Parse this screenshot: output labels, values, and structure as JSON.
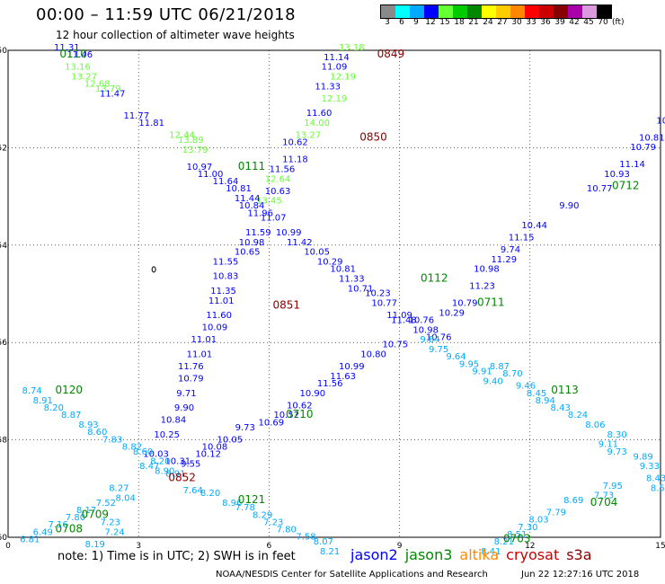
{
  "header": {
    "title": "00:00 – 11:59 UTC 06/21/2018",
    "subtitle": "12 hour collection of altimeter wave heights"
  },
  "legend": {
    "unit": "(ft)",
    "bins": [
      {
        "label": "3",
        "color": "#8a8a8a"
      },
      {
        "label": "6",
        "color": "#00ffff"
      },
      {
        "label": "9",
        "color": "#00aaff"
      },
      {
        "label": "12",
        "color": "#0000ff"
      },
      {
        "label": "15",
        "color": "#66ff33"
      },
      {
        "label": "18",
        "color": "#00cc00"
      },
      {
        "label": "21",
        "color": "#008800"
      },
      {
        "label": "24",
        "color": "#ffff00"
      },
      {
        "label": "27",
        "color": "#ffcc00"
      },
      {
        "label": "30",
        "color": "#ff8800"
      },
      {
        "label": "33",
        "color": "#ff0000"
      },
      {
        "label": "36",
        "color": "#cc0000"
      },
      {
        "label": "39",
        "color": "#880000"
      },
      {
        "label": "42",
        "color": "#aa00aa"
      },
      {
        "label": "45",
        "color": "#dd99dd"
      },
      {
        "label": "70",
        "color": "#000000"
      }
    ]
  },
  "axes": {
    "x_ticks": [
      "0",
      "3",
      "6",
      "9",
      "12",
      "15"
    ],
    "y_ticks": [
      "-50",
      "-52",
      "-54",
      "-56",
      "-58",
      "-60"
    ]
  },
  "colors": {
    "jason2": "#0000ff",
    "jason3": "#008800",
    "altika": "#ff8800",
    "cryosat": "#cc0000",
    "s3a": "#880000",
    "swh_lightblue": "#00aaff",
    "swh_blue": "#0000ff",
    "swh_lightgreen": "#66ff33",
    "time_green": "#008800",
    "time_darkred": "#880000"
  },
  "map": {
    "times": [
      {
        "text": "0110",
        "x": 1.5,
        "y": -50.15,
        "c": "green"
      },
      {
        "text": "0849",
        "x": 8.8,
        "y": -50.15,
        "c": "darkred"
      },
      {
        "text": "0850",
        "x": 8.4,
        "y": -51.85,
        "c": "darkred"
      },
      {
        "text": "0111",
        "x": 5.6,
        "y": -52.45,
        "c": "green"
      },
      {
        "text": "0712",
        "x": 14.2,
        "y": -52.85,
        "c": "green"
      },
      {
        "text": "0112",
        "x": 9.8,
        "y": -54.75,
        "c": "green"
      },
      {
        "text": "0711",
        "x": 11.1,
        "y": -55.25,
        "c": "green"
      },
      {
        "text": "0851",
        "x": 6.4,
        "y": -55.3,
        "c": "darkred"
      },
      {
        "text": "0120",
        "x": 1.4,
        "y": -57.05,
        "c": "green"
      },
      {
        "text": "0113",
        "x": 12.8,
        "y": -57.05,
        "c": "green"
      },
      {
        "text": "0710",
        "x": 6.7,
        "y": -57.55,
        "c": "green"
      },
      {
        "text": "0852",
        "x": 4.0,
        "y": -58.85,
        "c": "darkred"
      },
      {
        "text": "0121",
        "x": 5.6,
        "y": -59.3,
        "c": "green"
      },
      {
        "text": "0704",
        "x": 13.7,
        "y": -59.35,
        "c": "green"
      },
      {
        "text": "0709",
        "x": 2.0,
        "y": -59.6,
        "c": "green"
      },
      {
        "text": "0708",
        "x": 1.4,
        "y": -59.9,
        "c": "green"
      },
      {
        "text": "0703",
        "x": 11.7,
        "y": -60.1,
        "c": "green"
      }
    ],
    "tracks": [
      {
        "c": "lightgreen",
        "pts": [
          [
            "13.16",
            1.6,
            -50.4
          ],
          [
            "13.27",
            1.75,
            -50.6
          ],
          [
            "12.68",
            2.05,
            -50.75
          ],
          [
            "13.79",
            2.3,
            -50.85
          ],
          [
            "12.44",
            4.0,
            -51.8
          ],
          [
            "13.89",
            4.2,
            -51.9
          ],
          [
            "13.79",
            4.3,
            -52.1
          ],
          [
            "13.18",
            7.9,
            -50.0
          ],
          [
            "12.19",
            7.7,
            -50.6
          ],
          [
            "12.19",
            7.5,
            -51.05
          ],
          [
            "14.00",
            7.1,
            -51.55
          ],
          [
            "13.27",
            6.9,
            -51.8
          ],
          [
            "12.64",
            6.2,
            -52.7
          ],
          [
            "13.45",
            6.0,
            -53.15
          ]
        ]
      },
      {
        "c": "blue",
        "pts": [
          [
            "11.31",
            1.35,
            -50.0
          ],
          [
            "11.46",
            1.65,
            -50.15
          ],
          [
            "11.47",
            2.4,
            -50.95
          ],
          [
            "11.77",
            2.95,
            -51.4
          ],
          [
            "11.81",
            3.3,
            -51.55
          ],
          [
            "10.97",
            4.4,
            -52.45
          ],
          [
            "11.00",
            4.65,
            -52.6
          ],
          [
            "11.64",
            5.0,
            -52.75
          ],
          [
            "10.81",
            5.3,
            -52.9
          ],
          [
            "11.44",
            5.5,
            -53.1
          ],
          [
            "10.84",
            5.6,
            -53.25
          ],
          [
            "11.96",
            5.8,
            -53.4
          ],
          [
            "11.14",
            7.55,
            -50.2
          ],
          [
            "11.09",
            7.5,
            -50.4
          ],
          [
            "11.33",
            7.35,
            -50.8
          ],
          [
            "11.60",
            7.15,
            -51.35
          ],
          [
            "10.62",
            6.6,
            -51.95
          ],
          [
            "11.18",
            6.6,
            -52.3
          ],
          [
            "11.56",
            6.3,
            -52.5
          ],
          [
            "10.63",
            6.2,
            -52.95
          ],
          [
            "11.07",
            6.1,
            -53.5
          ],
          [
            "11.59",
            5.75,
            -53.8
          ],
          [
            "10.99",
            6.45,
            -53.8
          ],
          [
            "10.98",
            5.6,
            -54.0
          ],
          [
            "11.42",
            6.7,
            -54.0
          ],
          [
            "10.65",
            5.5,
            -54.2
          ],
          [
            "10.05",
            7.1,
            -54.2
          ],
          [
            "10.29",
            7.4,
            -54.4
          ],
          [
            "11.55",
            5.0,
            -54.4
          ],
          [
            "10.81",
            7.7,
            -54.55
          ],
          [
            "10.83",
            5.0,
            -54.7
          ],
          [
            "11.33",
            7.9,
            -54.75
          ],
          [
            "11.35",
            4.95,
            -55.0
          ],
          [
            "10.71",
            8.1,
            -54.95
          ],
          [
            "11.01",
            4.9,
            -55.2
          ],
          [
            "10.23",
            8.5,
            -55.05
          ],
          [
            "11.60",
            4.85,
            -55.5
          ],
          [
            "10.77",
            8.65,
            -55.25
          ],
          [
            "10.09",
            4.75,
            -55.75
          ],
          [
            "11.09",
            9.0,
            -55.5
          ],
          [
            "11.01",
            4.5,
            -56.0
          ],
          [
            "11.01",
            4.4,
            -56.3
          ],
          [
            "11.76",
            4.2,
            -56.55
          ],
          [
            "10.79",
            4.2,
            -56.8
          ],
          [
            "9.71",
            4.1,
            -57.1
          ],
          [
            "9.90",
            4.05,
            -57.4
          ],
          [
            "10.84",
            3.8,
            -57.65
          ],
          [
            "10.25",
            3.65,
            -57.95
          ],
          [
            "10.03",
            3.4,
            -58.35
          ],
          [
            "10.31",
            3.9,
            -58.5
          ],
          [
            "11.48",
            9.1,
            -55.6
          ],
          [
            "10.76",
            9.5,
            -55.6
          ],
          [
            "10.98",
            9.6,
            -55.8
          ],
          [
            "10.29",
            10.2,
            -55.45
          ],
          [
            "10.79",
            10.5,
            -55.25
          ],
          [
            "11.23",
            10.9,
            -54.9
          ],
          [
            "10.98",
            11.0,
            -54.55
          ],
          [
            "11.29",
            11.4,
            -54.35
          ],
          [
            "9.74",
            11.55,
            -54.15
          ],
          [
            "11.15",
            11.8,
            -53.9
          ],
          [
            "10.44",
            12.1,
            -53.65
          ],
          [
            "9.90",
            12.9,
            -53.25
          ],
          [
            "10.77",
            13.6,
            -52.9
          ],
          [
            "10.93",
            14.0,
            -52.6
          ],
          [
            "11.14",
            14.35,
            -52.4
          ],
          [
            "10.79",
            14.6,
            -52.05
          ],
          [
            "10.81",
            14.8,
            -51.85
          ],
          [
            "10.77",
            15.2,
            -51.5
          ],
          [
            "10.91",
            15.4,
            -51.2
          ],
          [
            "10.76",
            9.9,
            -55.95
          ],
          [
            "10.75",
            8.9,
            -56.1
          ],
          [
            "10.80",
            8.4,
            -56.3
          ],
          [
            "10.99",
            7.9,
            -56.55
          ],
          [
            "11.63",
            7.7,
            -56.75
          ],
          [
            "11.56",
            7.4,
            -56.9
          ],
          [
            "10.90",
            7.0,
            -57.1
          ],
          [
            "10.62",
            6.7,
            -57.35
          ],
          [
            "10.52",
            6.4,
            -57.55
          ],
          [
            "10.69",
            6.05,
            -57.7
          ],
          [
            "9.73",
            5.45,
            -57.8
          ],
          [
            "10.05",
            5.1,
            -58.05
          ],
          [
            "10.08",
            4.75,
            -58.2
          ],
          [
            "10.12",
            4.6,
            -58.35
          ],
          [
            "9.55",
            4.2,
            -58.55
          ]
        ]
      },
      {
        "c": "lightblue",
        "pts": [
          [
            "8.74",
            0.55,
            -57.05
          ],
          [
            "8.91",
            0.8,
            -57.25
          ],
          [
            "8.20",
            1.05,
            -57.4
          ],
          [
            "8.87",
            1.45,
            -57.55
          ],
          [
            "8.93",
            1.85,
            -57.75
          ],
          [
            "8.60",
            2.05,
            -57.9
          ],
          [
            "7.83",
            2.4,
            -58.05
          ],
          [
            "8.82",
            2.85,
            -58.2
          ],
          [
            "8.60",
            3.1,
            -58.3
          ],
          [
            "8.20",
            3.5,
            -58.5
          ],
          [
            "8.47",
            3.25,
            -58.6
          ],
          [
            "8.90",
            3.6,
            -58.7
          ],
          [
            "8.91",
            3.85,
            -58.75
          ],
          [
            "7.64",
            4.25,
            -59.1
          ],
          [
            "8.20",
            4.65,
            -59.15
          ],
          [
            "8.96",
            5.15,
            -59.35
          ],
          [
            "7.78",
            5.45,
            -59.45
          ],
          [
            "8.29",
            5.85,
            -59.6
          ],
          [
            "7.23",
            6.1,
            -59.75
          ],
          [
            "7.80",
            6.4,
            -59.9
          ],
          [
            "7.58",
            6.85,
            -60.05
          ],
          [
            "8.07",
            7.25,
            -60.15
          ],
          [
            "8.21",
            7.4,
            -60.35
          ],
          [
            "8.87",
            11.3,
            -56.55
          ],
          [
            "8.70",
            11.6,
            -56.7
          ],
          [
            "9.46",
            11.9,
            -56.95
          ],
          [
            "8.45",
            12.15,
            -57.1
          ],
          [
            "8.94",
            12.35,
            -57.25
          ],
          [
            "8.43",
            12.7,
            -57.4
          ],
          [
            "8.24",
            13.1,
            -57.55
          ],
          [
            "8.06",
            13.5,
            -57.75
          ],
          [
            "8.30",
            14.0,
            -57.95
          ],
          [
            "9.11",
            13.8,
            -58.15
          ],
          [
            "9.73",
            14.0,
            -58.3
          ],
          [
            "9.89",
            14.6,
            -58.4
          ],
          [
            "9.33",
            14.75,
            -58.6
          ],
          [
            "8.43",
            14.9,
            -58.85
          ],
          [
            "8.50",
            15.0,
            -59.05
          ],
          [
            "7.95",
            13.9,
            -59.0
          ],
          [
            "7.73",
            13.7,
            -59.2
          ],
          [
            "8.69",
            13.0,
            -59.3
          ],
          [
            "7.79",
            12.6,
            -59.55
          ],
          [
            "8.03",
            12.2,
            -59.7
          ],
          [
            "7.30",
            11.95,
            -59.85
          ],
          [
            "8.51",
            11.7,
            -60.0
          ],
          [
            "8.21",
            11.4,
            -60.15
          ],
          [
            "8.41",
            11.1,
            -60.35
          ],
          [
            "8.27",
            2.55,
            -59.05
          ],
          [
            "8.04",
            2.7,
            -59.25
          ],
          [
            "7.52",
            2.25,
            -59.35
          ],
          [
            "8.17",
            1.8,
            -59.5
          ],
          [
            "7.80",
            1.55,
            -59.65
          ],
          [
            "7.16",
            1.15,
            -59.8
          ],
          [
            "6.49",
            0.8,
            -59.95
          ],
          [
            "6.81",
            0.5,
            -60.1
          ],
          [
            "7.24",
            2.45,
            -59.95
          ],
          [
            "8.19",
            2.0,
            -60.2
          ],
          [
            "7.23",
            2.35,
            -59.75
          ],
          [
            "9.84",
            9.7,
            -56.0
          ],
          [
            "9.75",
            9.9,
            -56.2
          ],
          [
            "9.64",
            10.3,
            -56.35
          ],
          [
            "9.95",
            10.6,
            -56.5
          ],
          [
            "9.91",
            10.9,
            -56.65
          ],
          [
            "9.40",
            11.15,
            -56.85
          ]
        ]
      }
    ]
  },
  "note": "note: 1) Time is in UTC; 2) SWH is in feet",
  "satellites": [
    {
      "name": "jason2",
      "color": "#0000ff"
    },
    {
      "name": "jason3",
      "color": "#008800"
    },
    {
      "name": "altika",
      "color": "#ff8800"
    },
    {
      "name": "cryosat",
      "color": "#cc0000"
    },
    {
      "name": "s3a",
      "color": "#880000"
    }
  ],
  "footer": {
    "credit": "NOAA/NESDIS Center for Satellite Applications and Research",
    "timestamp": "Jun 22 12:27:16 UTC 2018"
  }
}
